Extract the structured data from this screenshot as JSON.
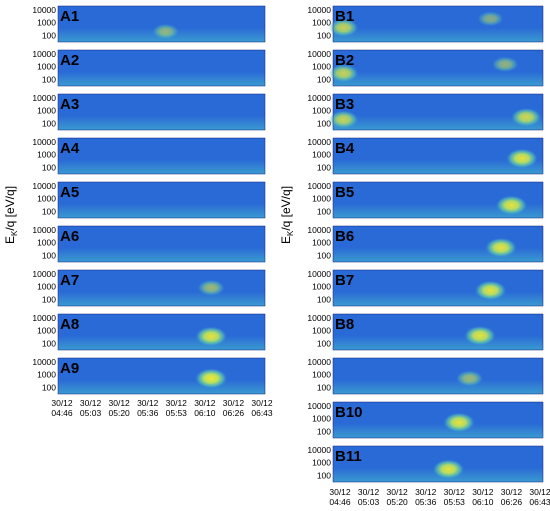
{
  "chart_data": {
    "type": "heatmap",
    "ylabel_left": "E",
    "ylabel_left_sub": "K",
    "ylabel_left_rest": "/q  [eV/q]",
    "ylabel_right": "E",
    "ylabel_right_sub": "K",
    "ylabel_right_rest": "/q  [eV/q]",
    "y_ticks": [
      "10000",
      "1000",
      "100"
    ],
    "y_range": [
      30,
      20000
    ],
    "y_scale": "log",
    "x_range": [
      "30/12 04:46",
      "30/12 06:43"
    ],
    "x_tick_dates": [
      "30/12",
      "30/12",
      "30/12",
      "30/12",
      "30/12",
      "30/12",
      "30/12",
      "30/12"
    ],
    "x_tick_times": [
      "04:46",
      "05:03",
      "05:20",
      "05:36",
      "05:53",
      "06:10",
      "06:26",
      "06:43"
    ],
    "colormap": [
      "#1a3aa8",
      "#2a6ad6",
      "#3a9ad0",
      "#5cc8b0",
      "#b8e060",
      "#f4e830"
    ],
    "panels_left": [
      {
        "label": "A1",
        "blobs": [
          {
            "t": 0.52,
            "e": 200,
            "intensity": 0.55
          }
        ]
      },
      {
        "label": "A2",
        "blobs": []
      },
      {
        "label": "A3",
        "blobs": []
      },
      {
        "label": "A4",
        "blobs": []
      },
      {
        "label": "A5",
        "blobs": []
      },
      {
        "label": "A6",
        "blobs": []
      },
      {
        "label": "A7",
        "blobs": [
          {
            "t": 0.74,
            "e": 800,
            "intensity": 0.6
          }
        ]
      },
      {
        "label": "A8",
        "blobs": [
          {
            "t": 0.74,
            "e": 350,
            "intensity": 0.95
          }
        ]
      },
      {
        "label": "A9",
        "blobs": [
          {
            "t": 0.74,
            "e": 500,
            "intensity": 1.0
          }
        ]
      }
    ],
    "panels_right": [
      {
        "label": "B1",
        "blobs": [
          {
            "t": 0.05,
            "e": 400,
            "intensity": 0.8
          },
          {
            "t": 0.75,
            "e": 2000,
            "intensity": 0.5
          }
        ]
      },
      {
        "label": "B2",
        "blobs": [
          {
            "t": 0.05,
            "e": 300,
            "intensity": 0.8
          },
          {
            "t": 0.82,
            "e": 1500,
            "intensity": 0.55
          }
        ]
      },
      {
        "label": "B3",
        "blobs": [
          {
            "t": 0.05,
            "e": 200,
            "intensity": 0.8
          },
          {
            "t": 0.92,
            "e": 300,
            "intensity": 0.85
          }
        ]
      },
      {
        "label": "B4",
        "blobs": [
          {
            "t": 0.9,
            "e": 500,
            "intensity": 0.95
          }
        ]
      },
      {
        "label": "B5",
        "blobs": [
          {
            "t": 0.85,
            "e": 300,
            "intensity": 0.95
          }
        ]
      },
      {
        "label": "B6",
        "blobs": [
          {
            "t": 0.8,
            "e": 400,
            "intensity": 0.95
          }
        ]
      },
      {
        "label": "B7",
        "blobs": [
          {
            "t": 0.75,
            "e": 500,
            "intensity": 0.95
          }
        ]
      },
      {
        "label": "B8",
        "blobs": [
          {
            "t": 0.7,
            "e": 400,
            "intensity": 0.95
          }
        ]
      },
      {
        "label": "",
        "blobs": [
          {
            "t": 0.65,
            "e": 500,
            "intensity": 0.6
          }
        ]
      },
      {
        "label": "B10",
        "blobs": [
          {
            "t": 0.6,
            "e": 500,
            "intensity": 0.95
          }
        ]
      },
      {
        "label": "B11",
        "blobs": [
          {
            "t": 0.55,
            "e": 300,
            "intensity": 0.95
          }
        ]
      }
    ]
  }
}
